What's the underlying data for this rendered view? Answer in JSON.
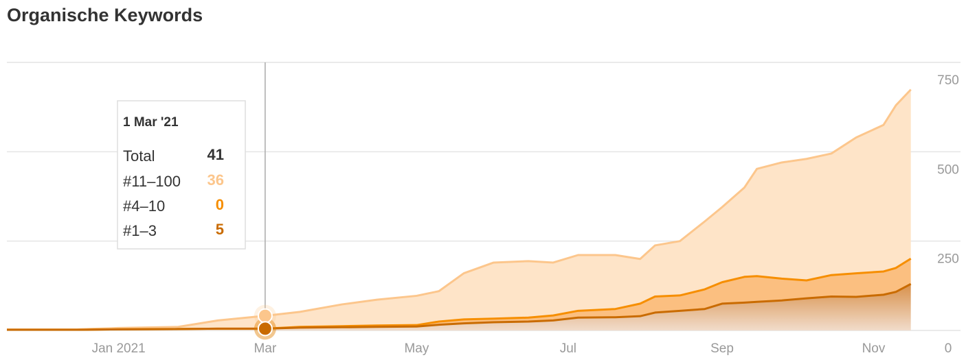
{
  "chart_data": {
    "type": "stacked-area",
    "title": "Organische Keywords",
    "x": [
      "2020-11-17",
      "2020-12-15",
      "2021-01-01",
      "2021-01-25",
      "2021-02-10",
      "2021-03-01",
      "2021-03-15",
      "2021-04-01",
      "2021-04-15",
      "2021-05-01",
      "2021-05-10",
      "2021-05-20",
      "2021-06-01",
      "2021-06-15",
      "2021-06-25",
      "2021-07-05",
      "2021-07-20",
      "2021-07-30",
      "2021-08-05",
      "2021-08-15",
      "2021-08-25",
      "2021-09-01",
      "2021-09-10",
      "2021-09-15",
      "2021-09-25",
      "2021-10-05",
      "2021-10-15",
      "2021-10-25",
      "2021-11-05",
      "2021-11-10",
      "2021-11-16"
    ],
    "series": [
      {
        "name": "#1–3",
        "color": "#c96b00",
        "values": [
          2,
          2,
          3,
          4,
          5,
          5,
          8,
          9,
          10,
          11,
          16,
          20,
          23,
          25,
          28,
          36,
          37,
          40,
          50,
          55,
          60,
          75,
          78,
          80,
          84,
          90,
          95,
          94,
          100,
          108,
          130
        ]
      },
      {
        "name": "#4–10",
        "color": "#f68e00",
        "values": [
          0,
          0,
          0,
          0,
          0,
          0,
          2,
          3,
          4,
          4,
          9,
          11,
          10,
          11,
          14,
          19,
          23,
          35,
          45,
          43,
          55,
          60,
          72,
          72,
          61,
          50,
          60,
          66,
          65,
          67,
          71
        ]
      },
      {
        "name": "#11–100",
        "color": "#fcc68c",
        "values": [
          1,
          1,
          4,
          6,
          23,
          36,
          42,
          61,
          72,
          82,
          85,
          129,
          157,
          158,
          148,
          156,
          151,
          125,
          143,
          152,
          190,
          210,
          250,
          300,
          325,
          340,
          340,
          380,
          410,
          455,
          473
        ]
      }
    ],
    "xlim": [
      "2020-11-17",
      "2021-12-06"
    ],
    "xticks": [
      {
        "value": "2021-01-01",
        "label": "Jan 2021"
      },
      {
        "value": "2021-03-01",
        "label": "Mar"
      },
      {
        "value": "2021-05-01",
        "label": "May"
      },
      {
        "value": "2021-07-01",
        "label": "Jul"
      },
      {
        "value": "2021-09-01",
        "label": "Sep"
      },
      {
        "value": "2021-11-01",
        "label": "Nov"
      }
    ],
    "ylim": [
      0,
      750
    ],
    "yticks": [
      0,
      250,
      500,
      750
    ],
    "grid": true,
    "tooltip": {
      "date": "1 Mar '21",
      "total_label": "Total",
      "total": 41
    }
  }
}
